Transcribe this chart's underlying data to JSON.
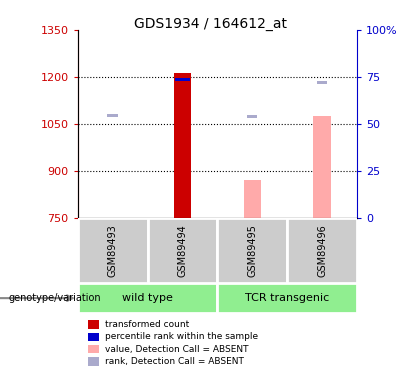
{
  "title": "GDS1934 / 164612_at",
  "samples": [
    "GSM89493",
    "GSM89494",
    "GSM89495",
    "GSM89496"
  ],
  "ylim_left": [
    750,
    1350
  ],
  "yticks_left": [
    750,
    900,
    1050,
    1200,
    1350
  ],
  "yticks_right_vals": [
    0,
    25,
    50,
    75,
    100
  ],
  "ytick_labels_right": [
    "0",
    "25",
    "50",
    "75",
    "100%"
  ],
  "left_color": "#cc0000",
  "right_color": "#0000cc",
  "bar_width": 0.25,
  "bars": {
    "GSM89493": {
      "transformed_count": null,
      "percentile_rank": null,
      "value_absent": null,
      "rank_absent": 1073
    },
    "GSM89494": {
      "transformed_count": 1213,
      "percentile_rank": 1188,
      "value_absent": null,
      "rank_absent": null
    },
    "GSM89495": {
      "transformed_count": null,
      "percentile_rank": null,
      "value_absent": 870,
      "rank_absent": 1070
    },
    "GSM89496": {
      "transformed_count": null,
      "percentile_rank": null,
      "value_absent": 1075,
      "rank_absent": 1178
    }
  },
  "bar_colors": {
    "transformed_count": "#cc0000",
    "percentile_rank": "#0000cc",
    "value_absent": "#ffaaaa",
    "rank_absent": "#aaaacc"
  },
  "legend_items": [
    {
      "color": "#cc0000",
      "label": "transformed count"
    },
    {
      "color": "#0000cc",
      "label": "percentile rank within the sample"
    },
    {
      "color": "#ffaaaa",
      "label": "value, Detection Call = ABSENT"
    },
    {
      "color": "#aaaacc",
      "label": "rank, Detection Call = ABSENT"
    }
  ],
  "sample_area_color": "#cccccc",
  "group_area_color": "#90EE90",
  "groups": [
    {
      "label": "wild type",
      "start": 0,
      "end": 1
    },
    {
      "label": "TCR transgenic",
      "start": 2,
      "end": 3
    }
  ],
  "genotype_label": "genotype/variation",
  "arrow_color": "#888888",
  "dotted_gridlines": [
    900,
    1050,
    1200
  ],
  "tick_label_color_left": "#cc0000",
  "tick_label_color_right": "#0000cc"
}
